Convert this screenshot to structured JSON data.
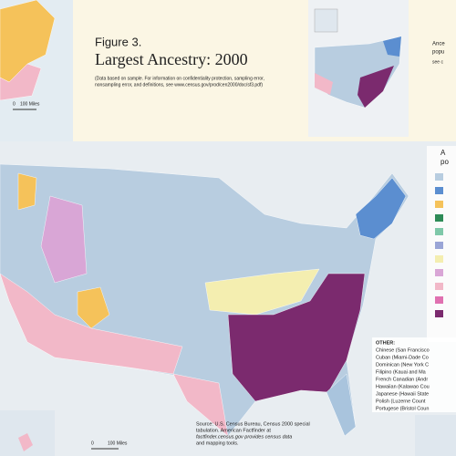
{
  "header": {
    "figure": "Figure 3.",
    "title": "Largest Ancestry: 2000",
    "note": [
      "(Data based on sample. For information on confidentiality protection, sampling error,",
      "nonsampling error, and definitions, see www.census.gov/prod/cen2000/doc/sf3.pdf)"
    ]
  },
  "inset_left": {
    "scale": [
      "0",
      "100 Miles"
    ]
  },
  "inset_right": {
    "text": [
      "Ance",
      "popu",
      "see c"
    ]
  },
  "legend": {
    "text": [
      "A",
      "po"
    ]
  },
  "other": {
    "title": "OTHER:",
    "items": [
      "Chinese (San Francisco",
      "Cuban (Miami-Dade Co",
      "Dominican (New York C",
      "Filipino (Kauai and Ma",
      "French Canadian (Andr",
      "Hawaiian (Kalawao Cou",
      "Japanese (Hawaii State",
      "Polish (Luzerne Count",
      "Portugese (Bristol Coun"
    ]
  },
  "source": [
    "Source: U.S. Census Bureau, Census 2000 special",
    "tabulation. American Factfinder at",
    "factfinder.census.gov provides census data",
    "and mapping tools."
  ],
  "scale_bottom": [
    "0",
    "100 Miles"
  ]
}
